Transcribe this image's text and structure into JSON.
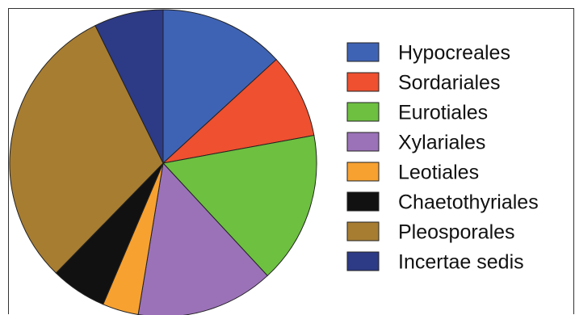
{
  "chart_data": {
    "type": "pie",
    "title": "",
    "start_angle_deg": 0,
    "direction": "clockwise",
    "legend_position": "right",
    "slices": [
      {
        "label": "Hypocreales",
        "value": 13.2,
        "color": "#3f63b4"
      },
      {
        "label": "Sordariales",
        "value": 8.9,
        "color": "#ee5030"
      },
      {
        "label": "Eurotiales",
        "value": 16.0,
        "color": "#6dc040"
      },
      {
        "label": "Xylariales",
        "value": 14.5,
        "color": "#9b72b8"
      },
      {
        "label": "Leotiales",
        "value": 3.8,
        "color": "#f7a131"
      },
      {
        "label": "Chaetothyriales",
        "value": 5.9,
        "color": "#111111"
      },
      {
        "label": "Pleosporales",
        "value": 30.4,
        "color": "#a77d32"
      },
      {
        "label": "Incertae sedis",
        "value": 7.3,
        "color": "#2d3a85"
      }
    ]
  }
}
